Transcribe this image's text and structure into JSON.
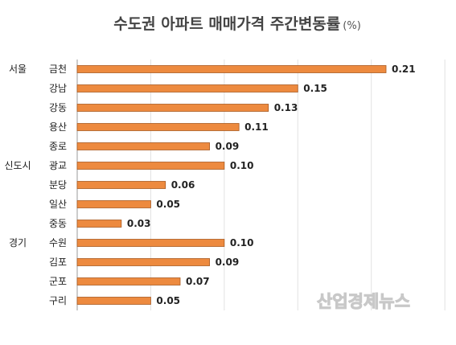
{
  "chart_data": {
    "type": "bar",
    "orientation": "horizontal",
    "title": "수도권 아파트 매매가격 주간변동률",
    "title_unit": "(%)",
    "groups": [
      {
        "name": "서울",
        "start": 0
      },
      {
        "name": "신도시",
        "start": 5
      },
      {
        "name": "경기",
        "start": 9
      }
    ],
    "categories": [
      "금천",
      "강남",
      "강동",
      "용산",
      "종로",
      "광교",
      "분당",
      "일산",
      "중동",
      "수원",
      "김포",
      "군포",
      "구리"
    ],
    "values": [
      0.21,
      0.15,
      0.13,
      0.11,
      0.09,
      0.1,
      0.06,
      0.05,
      0.03,
      0.1,
      0.09,
      0.07,
      0.05
    ],
    "value_labels": [
      "0.21",
      "0.15",
      "0.13",
      "0.11",
      "0.09",
      "0.10",
      "0.06",
      "0.05",
      "0.03",
      "0.10",
      "0.09",
      "0.07",
      "0.05"
    ],
    "xlim": [
      0,
      0.25
    ],
    "grid": true,
    "legend": "none",
    "bar_color": "#ED8A3F",
    "bar_edge_color": "#A85A22",
    "watermark": "산업경제뉴스"
  }
}
